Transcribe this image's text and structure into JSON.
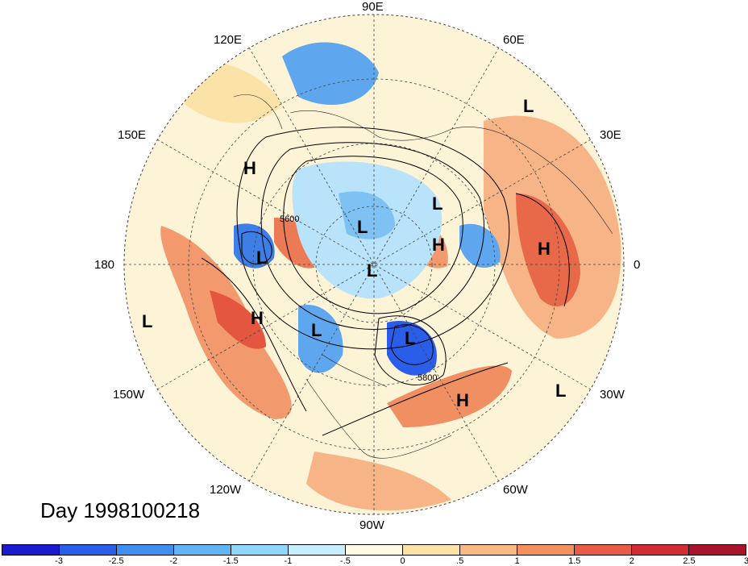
{
  "title_label": "Day 1998100218",
  "longitude_labels": {
    "n90e": "90E",
    "n120e": "120E",
    "n60e": "60E",
    "n150e": "150E",
    "n30e": "30E",
    "n180": "180",
    "n0": "0",
    "n150w": "150W",
    "n30w": "30W",
    "n120w": "120W",
    "n60w": "60W",
    "n90w": "90W"
  },
  "contour_labels": [
    "5600",
    "5800"
  ],
  "pressure_centers": [
    {
      "type": "H",
      "id": "h1"
    },
    {
      "type": "H",
      "id": "h2"
    },
    {
      "type": "H",
      "id": "h3"
    },
    {
      "type": "H",
      "id": "h4"
    },
    {
      "type": "H",
      "id": "h5"
    },
    {
      "type": "L",
      "id": "l1"
    },
    {
      "type": "L",
      "id": "l2"
    },
    {
      "type": "L",
      "id": "l3"
    },
    {
      "type": "L",
      "id": "l4"
    },
    {
      "type": "L",
      "id": "l5"
    },
    {
      "type": "L",
      "id": "l6"
    },
    {
      "type": "L",
      "id": "l7"
    },
    {
      "type": "L",
      "id": "l8"
    },
    {
      "type": "L",
      "id": "l9"
    }
  ],
  "colorbar": {
    "colors": [
      "#1a1ad1",
      "#2a5ee8",
      "#3f8ef0",
      "#62b4f5",
      "#8fd6fa",
      "#c6eefc",
      "#fffbe0",
      "#fbe3a8",
      "#f8ba82",
      "#f3905d",
      "#e85b45",
      "#d32b34",
      "#a8152a"
    ],
    "ticks": [
      "-3",
      "-2.5",
      "-2",
      "-1.5",
      "-1",
      "-.5",
      "0",
      ".5",
      "1",
      "1.5",
      "2",
      "2.5",
      "3"
    ]
  },
  "colors": {
    "background": "#fdf6df",
    "warm": "#f39a6a",
    "hot": "#e4563f",
    "cool": "#8fd0f5",
    "cold": "#3d7fe6"
  }
}
